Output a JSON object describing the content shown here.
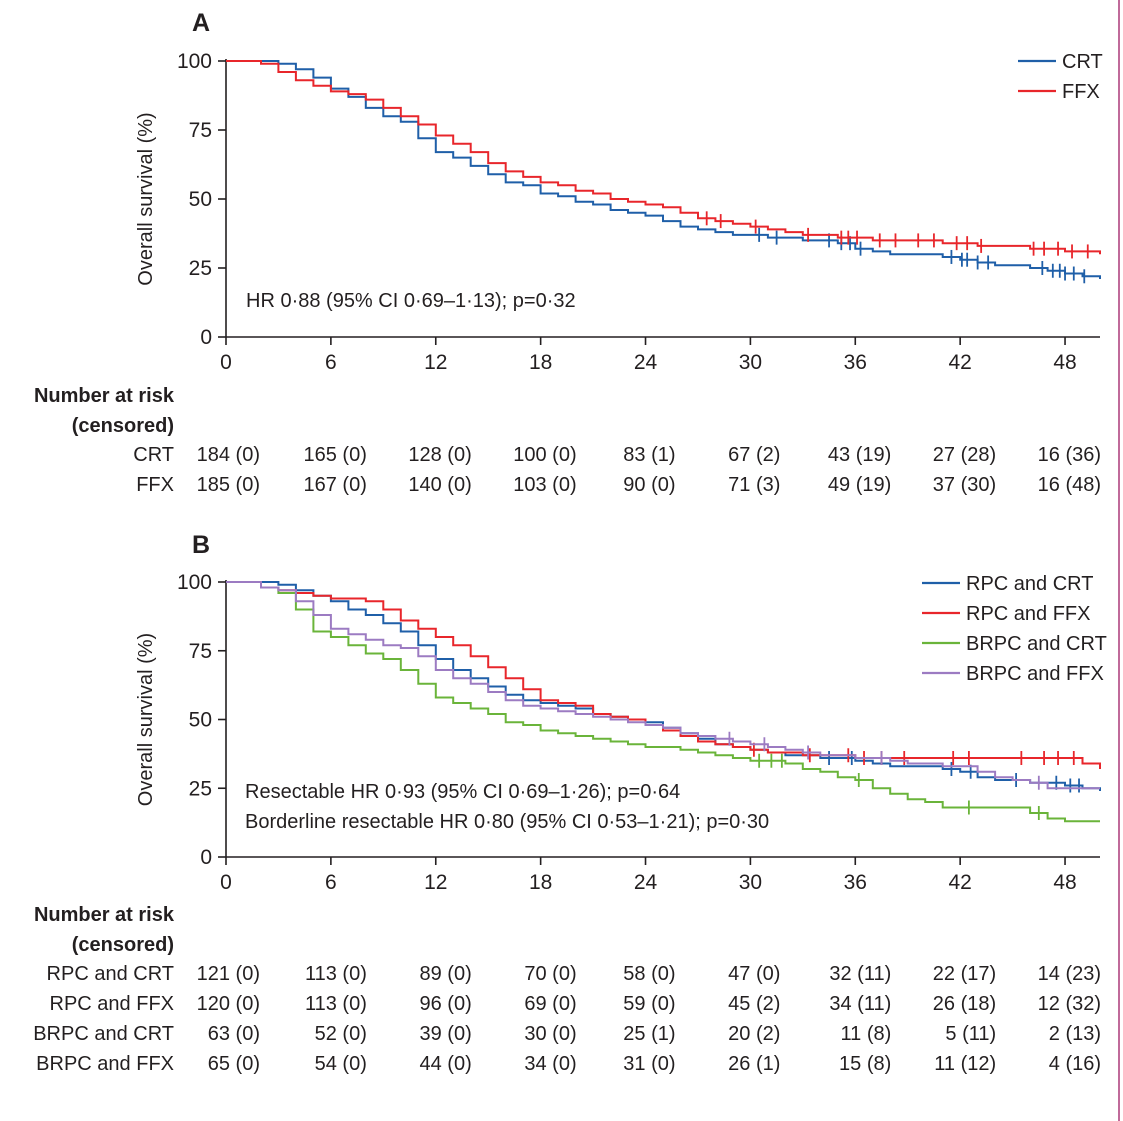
{
  "colors": {
    "crt": "#1f5fa8",
    "ffx": "#e8262b",
    "brpc_crt": "#6ab43a",
    "brpc_ffx": "#9c7bc2",
    "axis": "#231f20"
  },
  "risk_header": {
    "line1": "Number at risk",
    "line2": "(censored)"
  },
  "chart_data": [
    {
      "type": "line",
      "panel": "A",
      "xlabel": "",
      "ylabel": "Overall survival (%)",
      "xlim": [
        0,
        50
      ],
      "ylim": [
        0,
        100
      ],
      "xticks": [
        0,
        6,
        12,
        18,
        24,
        30,
        36,
        42,
        48
      ],
      "yticks": [
        0,
        25,
        50,
        75,
        100
      ],
      "legend_position": "top-right",
      "annotations": [
        "HR 0·88 (95% CI 0·69–1·13); p=0·32"
      ],
      "series": [
        {
          "name": "CRT",
          "color_key": "crt",
          "x": [
            0,
            2,
            3,
            4,
            5,
            6,
            7,
            8,
            9,
            10,
            11,
            12,
            13,
            14,
            15,
            16,
            17,
            18,
            19,
            20,
            21,
            22,
            23,
            24,
            25,
            26,
            27,
            28,
            29,
            30,
            31,
            32,
            33,
            34,
            35,
            36,
            37,
            38,
            39,
            40,
            41,
            42,
            43,
            44,
            45,
            46,
            47,
            48,
            49,
            50
          ],
          "y": [
            100,
            100,
            99,
            97,
            94,
            90,
            87,
            83,
            80,
            78,
            72,
            67,
            65,
            62,
            59,
            56,
            55,
            52,
            51,
            49,
            48,
            46,
            45,
            44,
            42,
            40,
            39,
            38,
            37,
            37,
            36,
            36,
            35,
            35,
            34,
            32,
            31,
            30,
            30,
            30,
            29,
            28,
            27,
            26,
            26,
            25,
            24,
            23,
            22,
            21
          ],
          "censored": [
            30.5,
            31.5,
            34.5,
            35.2,
            35.7,
            36.3,
            41.5,
            42.1,
            42.4,
            43,
            43.6,
            46.7,
            47.3,
            47.7,
            48,
            48.5,
            49.1
          ]
        },
        {
          "name": "FFX",
          "color_key": "ffx",
          "x": [
            0,
            2,
            3,
            4,
            5,
            6,
            7,
            8,
            9,
            10,
            11,
            12,
            13,
            14,
            15,
            16,
            17,
            18,
            19,
            20,
            21,
            22,
            23,
            24,
            25,
            26,
            27,
            28,
            29,
            30,
            31,
            32,
            33,
            34,
            35,
            36,
            37,
            38,
            39,
            40,
            41,
            42,
            43,
            44,
            45,
            46,
            47,
            48,
            49,
            50
          ],
          "y": [
            100,
            99,
            96,
            93,
            91,
            89,
            88,
            86,
            83,
            80,
            77,
            73,
            70,
            67,
            63,
            60,
            58,
            56,
            55,
            53,
            52,
            50,
            49,
            48,
            47,
            45,
            43,
            42,
            41,
            40,
            39,
            38,
            37,
            37,
            36,
            36,
            35,
            35,
            35,
            35,
            34,
            34,
            33,
            33,
            33,
            32,
            32,
            31,
            31,
            30
          ],
          "censored": [
            27.5,
            28.3,
            30.3,
            33.3,
            35.2,
            35.6,
            36.1,
            37.4,
            38.3,
            39.6,
            40.5,
            41.8,
            42.4,
            43.2,
            46.2,
            46.8,
            47.6,
            48.4,
            49.3
          ]
        }
      ],
      "risk_rows": [
        {
          "label": "CRT",
          "values": [
            "184 (0)",
            "165 (0)",
            "128 (0)",
            "100 (0)",
            "83 (1)",
            "67 (2)",
            "43 (19)",
            "27 (28)",
            "16 (36)"
          ]
        },
        {
          "label": "FFX",
          "values": [
            "185 (0)",
            "167 (0)",
            "140 (0)",
            "103 (0)",
            "90 (0)",
            "71 (3)",
            "49 (19)",
            "37 (30)",
            "16 (48)"
          ]
        }
      ]
    },
    {
      "type": "line",
      "panel": "B",
      "xlabel": "",
      "ylabel": "Overall survival (%)",
      "xlim": [
        0,
        50
      ],
      "ylim": [
        0,
        100
      ],
      "xticks": [
        0,
        6,
        12,
        18,
        24,
        30,
        36,
        42,
        48
      ],
      "yticks": [
        0,
        25,
        50,
        75,
        100
      ],
      "legend_position": "top-right",
      "annotations": [
        "Resectable HR 0·93 (95% CI 0·69–1·26); p=0·64",
        "Borderline resectable HR 0·80 (95% CI 0·53–1·21); p=0·30"
      ],
      "series": [
        {
          "name": "RPC and CRT",
          "color_key": "crt",
          "x": [
            0,
            2,
            3,
            4,
            5,
            6,
            7,
            8,
            9,
            10,
            11,
            12,
            13,
            14,
            15,
            16,
            17,
            18,
            19,
            20,
            21,
            22,
            23,
            24,
            25,
            26,
            27,
            28,
            29,
            30,
            31,
            32,
            33,
            34,
            35,
            36,
            37,
            38,
            39,
            40,
            41,
            42,
            43,
            44,
            45,
            46,
            47,
            48,
            49,
            50
          ],
          "y": [
            100,
            100,
            99,
            97,
            95,
            93,
            90,
            88,
            85,
            82,
            77,
            72,
            68,
            65,
            62,
            59,
            57,
            56,
            55,
            54,
            52,
            51,
            50,
            49,
            47,
            45,
            43,
            41,
            40,
            39,
            38,
            37,
            37,
            36,
            36,
            35,
            34,
            33,
            33,
            33,
            32,
            31,
            29,
            28,
            28,
            27,
            27,
            26,
            25,
            24
          ],
          "censored": [
            34.5,
            35.8,
            41.5,
            42.6,
            45.2,
            47.5,
            48.3,
            48.8
          ]
        },
        {
          "name": "RPC and FFX",
          "color_key": "ffx",
          "x": [
            0,
            2,
            3,
            4,
            5,
            6,
            7,
            8,
            9,
            10,
            11,
            12,
            13,
            14,
            15,
            16,
            17,
            18,
            19,
            20,
            21,
            22,
            23,
            24,
            25,
            26,
            27,
            28,
            29,
            30,
            31,
            32,
            33,
            34,
            35,
            36,
            37,
            38,
            39,
            40,
            41,
            42,
            43,
            44,
            45,
            46,
            47,
            48,
            49,
            50
          ],
          "y": [
            100,
            98,
            97,
            96,
            95,
            94,
            94,
            93,
            90,
            86,
            83,
            80,
            77,
            73,
            69,
            65,
            61,
            57,
            56,
            55,
            52,
            51,
            50,
            48,
            46,
            44,
            42,
            41,
            40,
            39,
            38,
            38,
            37,
            37,
            37,
            36,
            36,
            36,
            36,
            36,
            36,
            36,
            36,
            36,
            36,
            36,
            36,
            36,
            34,
            32
          ],
          "censored": [
            30.2,
            33.4,
            35.6,
            36.5,
            37.5,
            38.8,
            41.6,
            42.5,
            45.5,
            46.8,
            47.6,
            48.5
          ]
        },
        {
          "name": "BRPC and CRT",
          "color_key": "brpc_crt",
          "x": [
            0,
            2,
            3,
            4,
            5,
            6,
            7,
            8,
            9,
            10,
            11,
            12,
            13,
            14,
            15,
            16,
            17,
            18,
            19,
            20,
            21,
            22,
            23,
            24,
            25,
            26,
            27,
            28,
            29,
            30,
            31,
            32,
            33,
            34,
            35,
            36,
            37,
            38,
            39,
            40,
            41,
            42,
            43,
            44,
            45,
            46,
            47,
            48,
            49,
            50
          ],
          "y": [
            100,
            98,
            96,
            90,
            82,
            80,
            77,
            74,
            72,
            68,
            63,
            58,
            56,
            54,
            52,
            49,
            48,
            46,
            45,
            44,
            43,
            42,
            41,
            40,
            40,
            39,
            38,
            37,
            36,
            35,
            35,
            34,
            32,
            31,
            29,
            28,
            25,
            23,
            21,
            20,
            18,
            18,
            18,
            18,
            18,
            16,
            14,
            13,
            13,
            13
          ],
          "censored": [
            30.5,
            31.2,
            31.8,
            36.2,
            42.5,
            46.5
          ]
        },
        {
          "name": "BRPC and FFX",
          "color_key": "brpc_ffx",
          "x": [
            0,
            2,
            3,
            4,
            5,
            6,
            7,
            8,
            9,
            10,
            11,
            12,
            13,
            14,
            15,
            16,
            17,
            18,
            19,
            20,
            21,
            22,
            23,
            24,
            25,
            26,
            27,
            28,
            29,
            30,
            31,
            32,
            33,
            34,
            35,
            36,
            37,
            38,
            39,
            40,
            41,
            42,
            43,
            44,
            45,
            46,
            47,
            48,
            49,
            50
          ],
          "y": [
            100,
            98,
            97,
            93,
            88,
            83,
            81,
            79,
            77,
            76,
            73,
            68,
            65,
            63,
            60,
            57,
            55,
            54,
            53,
            52,
            51,
            50,
            49,
            48,
            47,
            45,
            44,
            43,
            42,
            41,
            40,
            39,
            38,
            37,
            37,
            36,
            36,
            35,
            34,
            34,
            33,
            33,
            31,
            29,
            28,
            27,
            25,
            25,
            25,
            25
          ],
          "censored": [
            28.8,
            30.8,
            33.3,
            37.5,
            46.5
          ]
        }
      ],
      "risk_rows": [
        {
          "label": "RPC and CRT",
          "values": [
            "121 (0)",
            "113 (0)",
            "89 (0)",
            "70 (0)",
            "58 (0)",
            "47 (0)",
            "32 (11)",
            "22 (17)",
            "14 (23)"
          ]
        },
        {
          "label": "RPC and FFX",
          "values": [
            "120 (0)",
            "113 (0)",
            "96 (0)",
            "69 (0)",
            "59 (0)",
            "45 (2)",
            "34 (11)",
            "26 (18)",
            "12 (32)"
          ]
        },
        {
          "label": "BRPC and CRT",
          "values": [
            "63 (0)",
            "52 (0)",
            "39 (0)",
            "30 (0)",
            "25 (1)",
            "20 (2)",
            "11 (8)",
            "5 (11)",
            "2 (13)"
          ]
        },
        {
          "label": "BRPC and FFX",
          "values": [
            "65 (0)",
            "54 (0)",
            "44 (0)",
            "34 (0)",
            "31 (0)",
            "26 (1)",
            "15 (8)",
            "11 (12)",
            "4 (16)"
          ]
        }
      ]
    }
  ]
}
